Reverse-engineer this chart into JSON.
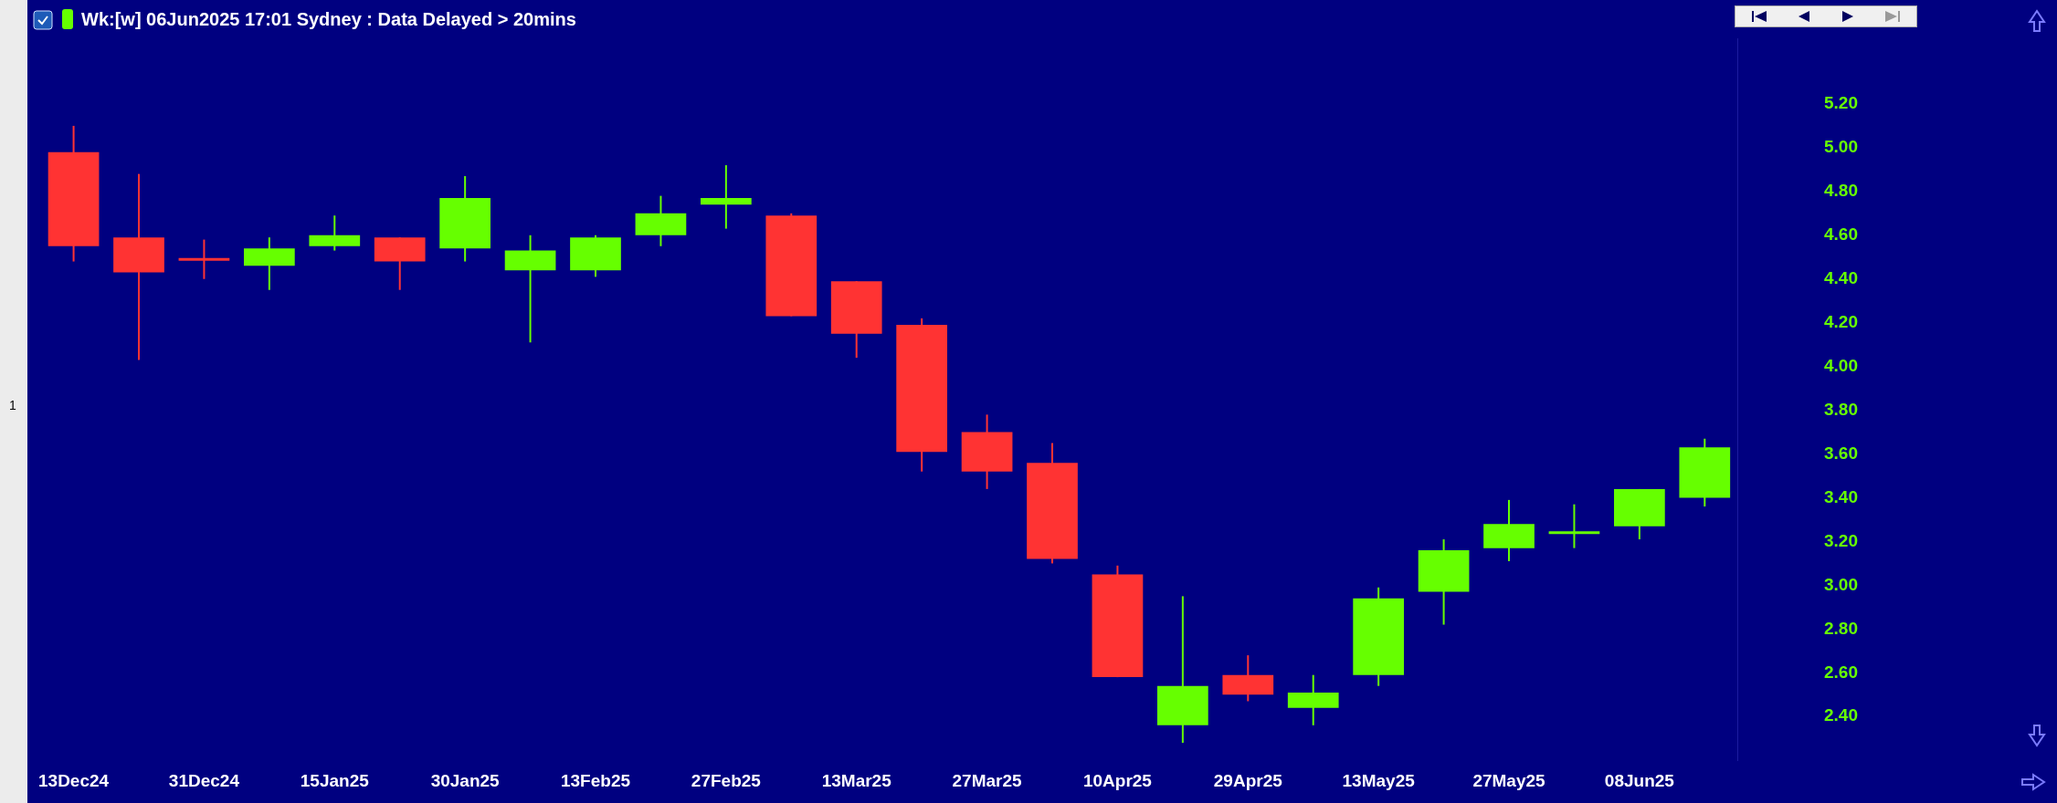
{
  "chart_data": {
    "type": "candlestick",
    "title": "Wk:[w]  06Jun2025 17:01 Sydney : Data Delayed > 20mins",
    "annotations": [
      "1"
    ],
    "categories": [
      "13Dec24",
      null,
      "31Dec24",
      null,
      "15Jan25",
      null,
      "30Jan25",
      null,
      "13Feb25",
      null,
      "27Feb25",
      null,
      "13Mar25",
      null,
      "27Mar25",
      null,
      "10Apr25",
      null,
      "29Apr25",
      null,
      "13May25",
      null,
      "27May25",
      null,
      "08Jun25",
      null
    ],
    "ohlc": [
      [
        4.98,
        5.1,
        4.48,
        4.55
      ],
      [
        4.59,
        4.88,
        4.03,
        4.43
      ],
      [
        4.49,
        4.58,
        4.4,
        4.49
      ],
      [
        4.46,
        4.59,
        4.35,
        4.54
      ],
      [
        4.55,
        4.69,
        4.53,
        4.6
      ],
      [
        4.59,
        4.59,
        4.35,
        4.48
      ],
      [
        4.54,
        4.87,
        4.48,
        4.77
      ],
      [
        4.44,
        4.6,
        4.11,
        4.53
      ],
      [
        4.44,
        4.6,
        4.41,
        4.59
      ],
      [
        4.6,
        4.78,
        4.55,
        4.7
      ],
      [
        4.74,
        4.92,
        4.63,
        4.77
      ],
      [
        4.69,
        4.7,
        4.23,
        4.23
      ],
      [
        4.39,
        4.39,
        4.04,
        4.15
      ],
      [
        4.19,
        4.22,
        3.52,
        3.61
      ],
      [
        3.7,
        3.78,
        3.44,
        3.52
      ],
      [
        3.56,
        3.65,
        3.1,
        3.12
      ],
      [
        3.05,
        3.09,
        2.58,
        2.58
      ],
      [
        2.36,
        2.95,
        2.28,
        2.54
      ],
      [
        2.59,
        2.68,
        2.47,
        2.5
      ],
      [
        2.44,
        2.59,
        2.36,
        2.51
      ],
      [
        2.59,
        2.99,
        2.54,
        2.94
      ],
      [
        2.97,
        3.21,
        2.82,
        3.16
      ],
      [
        3.17,
        3.39,
        3.11,
        3.28
      ],
      [
        3.24,
        3.37,
        3.17,
        3.24
      ],
      [
        3.27,
        3.44,
        3.21,
        3.44
      ],
      [
        3.4,
        3.67,
        3.36,
        3.63
      ]
    ],
    "colors": [
      "#ff3333",
      "#ff3333",
      "#ff3333",
      "#66ff00",
      "#66ff00",
      "#ff3333",
      "#66ff00",
      "#66ff00",
      "#66ff00",
      "#66ff00",
      "#66ff00",
      "#ff3333",
      "#ff3333",
      "#ff3333",
      "#ff3333",
      "#ff3333",
      "#ff3333",
      "#66ff00",
      "#ff3333",
      "#66ff00",
      "#66ff00",
      "#66ff00",
      "#66ff00",
      "#66ff00",
      "#66ff00",
      "#66ff00"
    ],
    "ylim": [
      2.2,
      5.5
    ],
    "yticks": [
      {
        "value": 2.4,
        "label": "2.40"
      },
      {
        "value": 2.6,
        "label": "2.60"
      },
      {
        "value": 2.8,
        "label": "2.80"
      },
      {
        "value": 3.0,
        "label": "3.00"
      },
      {
        "value": 3.2,
        "label": "3.20"
      },
      {
        "value": 3.4,
        "label": "3.40"
      },
      {
        "value": 3.6,
        "label": "3.60"
      },
      {
        "value": 3.8,
        "label": "3.80"
      },
      {
        "value": 4.0,
        "label": "4.00"
      },
      {
        "value": 4.2,
        "label": "4.20"
      },
      {
        "value": 4.4,
        "label": "4.40"
      },
      {
        "value": 4.6,
        "label": "4.60"
      },
      {
        "value": 4.8,
        "label": "4.80"
      },
      {
        "value": 5.0,
        "label": "5.00"
      },
      {
        "value": 5.2,
        "label": "5.20"
      }
    ],
    "legend": false
  }
}
